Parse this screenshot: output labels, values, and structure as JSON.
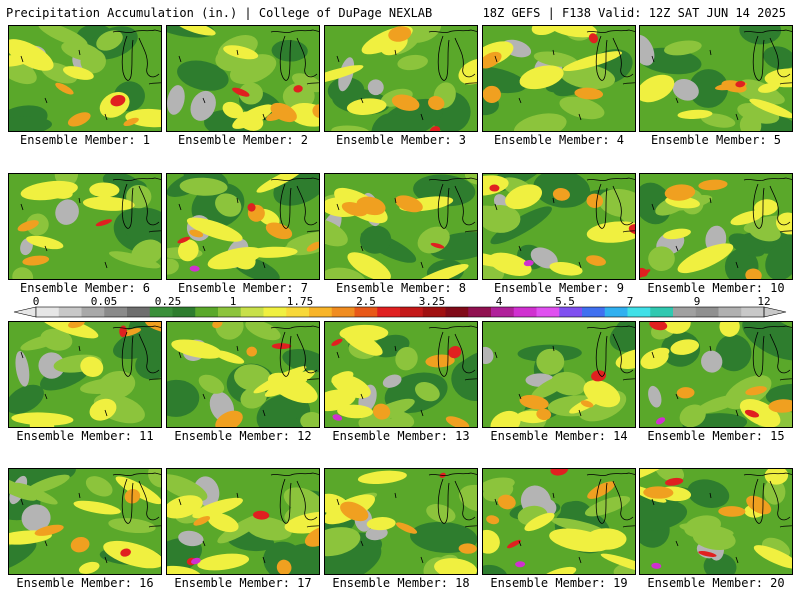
{
  "header": {
    "title_left": "Precipitation Accumulation (in.) | College of DuPage NEXLAB",
    "title_right": "18Z GEFS | F138 Valid: 12Z SAT JUN 14 2025"
  },
  "colorbar": {
    "tick_labels": [
      "0",
      "0.05",
      "0.25",
      "1",
      "1.75",
      "2.5",
      "3.25",
      "4",
      "5.5",
      "7",
      "9",
      "12"
    ],
    "colors": [
      "#e6e6e6",
      "#c8c8c8",
      "#a8a8a8",
      "#8a8a8a",
      "#6e6e6e",
      "#3a8f3a",
      "#2e7d2e",
      "#5aa82a",
      "#8cc43c",
      "#c8e04a",
      "#f0f040",
      "#f8d838",
      "#f8b428",
      "#f08c20",
      "#e85818",
      "#e02020",
      "#c41818",
      "#a01010",
      "#800a18",
      "#901050",
      "#b0209a",
      "#d030d0",
      "#e050f0",
      "#8050f0",
      "#4070f0",
      "#30b0f0",
      "#40e0e8",
      "#30c8b0",
      "#a0a0a0",
      "#909090",
      "#b0b0b0",
      "#c8c8c8"
    ]
  },
  "palette": {
    "gray": "#b4b4b4",
    "dark_green": "#2e7d2e",
    "green": "#5aa82a",
    "light_green": "#8cc43c",
    "yellow": "#f0f040",
    "orange": "#f0a020",
    "red": "#e02020",
    "dark_red": "#a01010",
    "magenta": "#d030d0"
  },
  "panels": [
    {
      "label": "Ensemble Member: 1",
      "level": 0.45
    },
    {
      "label": "Ensemble Member: 2",
      "level": 0.5
    },
    {
      "label": "Ensemble Member: 3",
      "level": 0.4
    },
    {
      "label": "Ensemble Member: 4",
      "level": 0.42
    },
    {
      "label": "Ensemble Member: 5",
      "level": 0.3
    },
    {
      "label": "Ensemble Member: 6",
      "level": 0.35
    },
    {
      "label": "Ensemble Member: 7",
      "level": 0.7
    },
    {
      "label": "Ensemble Member: 8",
      "level": 0.45
    },
    {
      "label": "Ensemble Member: 9",
      "level": 0.55
    },
    {
      "label": "Ensemble Member: 10",
      "level": 0.5
    },
    {
      "label": "Ensemble Member: 11",
      "level": 0.45
    },
    {
      "label": "Ensemble Member: 12",
      "level": 0.45
    },
    {
      "label": "Ensemble Member: 13",
      "level": 0.55
    },
    {
      "label": "Ensemble Member: 14",
      "level": 0.4
    },
    {
      "label": "Ensemble Member: 15",
      "level": 0.55
    },
    {
      "label": "Ensemble Member: 16",
      "level": 0.45
    },
    {
      "label": "Ensemble Member: 17",
      "level": 0.6
    },
    {
      "label": "Ensemble Member: 18",
      "level": 0.4
    },
    {
      "label": "Ensemble Member: 19",
      "level": 0.55
    },
    {
      "label": "Ensemble Member: 20",
      "level": 0.55
    }
  ]
}
